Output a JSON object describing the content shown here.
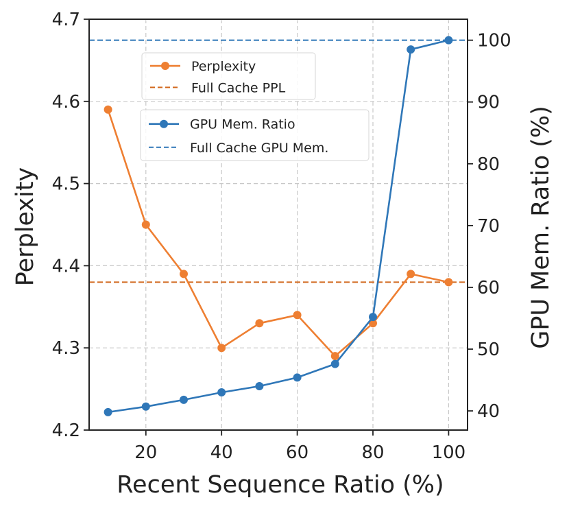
{
  "chart_data": {
    "type": "line",
    "x": [
      10,
      20,
      30,
      40,
      50,
      60,
      70,
      80,
      90,
      100
    ],
    "xlabel": "Recent Sequence Ratio (%)",
    "xticks": [
      20,
      40,
      60,
      80,
      100
    ],
    "xlim": [
      5,
      105
    ],
    "y_left": {
      "label": "Perplexity",
      "lim": [
        4.2,
        4.7
      ],
      "ticks": [
        "4.2",
        "4.3",
        "4.4",
        "4.5",
        "4.6",
        "4.7"
      ]
    },
    "y_right": {
      "label": "GPU Mem. Ratio (%)",
      "lim": [
        36.9,
        103.4
      ],
      "ticks": [
        "40",
        "50",
        "60",
        "70",
        "80",
        "90",
        "100"
      ]
    },
    "series": [
      {
        "name": "Perplexity",
        "axis": "left",
        "color": "#ee7f32",
        "values": [
          4.59,
          4.45,
          4.39,
          4.3,
          4.33,
          4.34,
          4.29,
          4.33,
          4.39,
          4.38
        ]
      },
      {
        "name": "GPU Mem. Ratio",
        "axis": "right",
        "color": "#2f77b8",
        "values": [
          39.8,
          40.7,
          41.8,
          43.0,
          44.0,
          45.4,
          47.6,
          55.2,
          98.5,
          100.0
        ]
      }
    ],
    "reference_lines": [
      {
        "name": "Full Cache PPL",
        "axis": "left",
        "value": 4.38,
        "color": "#d2691e"
      },
      {
        "name": "Full Cache GPU Mem.",
        "axis": "right",
        "value": 100.0,
        "color": "#2f77b8"
      }
    ],
    "legends": [
      {
        "position": "upper-left",
        "entries": [
          "Perplexity",
          "Full Cache PPL"
        ]
      },
      {
        "position": "upper-left, below first",
        "entries": [
          "GPU Mem. Ratio",
          "Full Cache GPU Mem."
        ]
      }
    ],
    "grid": true
  }
}
